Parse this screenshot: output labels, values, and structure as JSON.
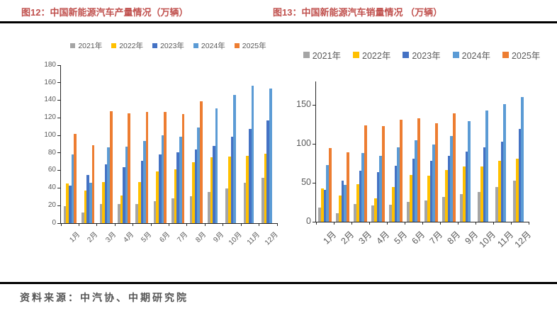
{
  "page": {
    "fig12_title": "图12：中国新能源汽车产量情况（万辆）",
    "fig13_title": "图13：中国新能源汽车销量情况 （万辆）",
    "source": "资料来源：中汽协、中期研究院"
  },
  "colors": {
    "title_red": "#c0504d",
    "axis_line": "#262626",
    "axis_text": "#595959",
    "rule_black": "#000000"
  },
  "chart_data": [
    {
      "type": "bar",
      "title": "图12：中国新能源汽车产量情况（万辆）",
      "categories": [
        "1月",
        "2月",
        "3月",
        "4月",
        "5月",
        "6月",
        "7月",
        "8月",
        "9月",
        "10月",
        "11月",
        "12月"
      ],
      "series": [
        {
          "name": "2021年",
          "color": "#A5A5A5",
          "values": [
            19.4,
            12.4,
            21.6,
            21.6,
            21.7,
            24.8,
            28.4,
            30.9,
            35.3,
            39.7,
            45.7,
            51.8
          ]
        },
        {
          "name": "2022年",
          "color": "#FFC000",
          "values": [
            45.2,
            36.8,
            46.5,
            31.2,
            46.6,
            59.0,
            61.7,
            69.1,
            75.5,
            76.2,
            76.8,
            79.5
          ]
        },
        {
          "name": "2023年",
          "color": "#4472C4",
          "values": [
            42.5,
            55.2,
            67.4,
            64.0,
            71.3,
            78.4,
            80.5,
            84.3,
            87.9,
            98.9,
            107.4,
            117.2
          ]
        },
        {
          "name": "2024年",
          "color": "#5B9BD5",
          "values": [
            78.7,
            46.4,
            86.3,
            87.0,
            94.0,
            100.3,
            98.4,
            109.2,
            130.7,
            146.3,
            156.6,
            153.0
          ]
        },
        {
          "name": "2025年",
          "color": "#ED7D31",
          "values": [
            101.5,
            88.8,
            127.7,
            125.4,
            127.0,
            126.8,
            124.3,
            139.1,
            null,
            null,
            null,
            null
          ]
        }
      ],
      "xlabel": "",
      "ylabel": "",
      "ylim": [
        0,
        180
      ],
      "yticks": [
        0,
        20,
        40,
        60,
        80,
        100,
        120,
        140,
        160,
        180
      ],
      "legend_position": "top",
      "grid": false
    },
    {
      "type": "bar",
      "title": "图13：中国新能源汽车销量情况 （万辆）",
      "categories": [
        "1月",
        "2月",
        "3月",
        "4月",
        "5月",
        "6月",
        "7月",
        "8月",
        "9月",
        "10月",
        "11月",
        "12月"
      ],
      "series": [
        {
          "name": "2021年",
          "color": "#A5A5A5",
          "values": [
            17.9,
            11.0,
            22.6,
            20.6,
            21.7,
            25.6,
            27.1,
            32.1,
            35.7,
            38.3,
            45.0,
            53.1
          ]
        },
        {
          "name": "2022年",
          "color": "#FFC000",
          "values": [
            43.1,
            33.4,
            48.4,
            29.9,
            44.7,
            59.6,
            59.3,
            66.6,
            70.8,
            71.4,
            78.6,
            81.4
          ]
        },
        {
          "name": "2023年",
          "color": "#4472C4",
          "values": [
            40.8,
            52.5,
            65.3,
            63.6,
            71.7,
            80.6,
            78.0,
            84.6,
            90.4,
            95.6,
            102.6,
            119.1
          ]
        },
        {
          "name": "2024年",
          "color": "#5B9BD5",
          "values": [
            72.9,
            47.7,
            88.3,
            85.0,
            95.5,
            104.9,
            99.1,
            110.0,
            128.7,
            143.0,
            151.2,
            159.6
          ]
        },
        {
          "name": "2025年",
          "color": "#ED7D31",
          "values": [
            94.4,
            89.2,
            123.7,
            122.6,
            130.7,
            132.9,
            126.2,
            139.5,
            null,
            null,
            null,
            null
          ]
        }
      ],
      "xlabel": "",
      "ylabel": "",
      "ylim": [
        0,
        180
      ],
      "yticks": [
        0,
        50,
        100,
        150
      ],
      "legend_position": "top",
      "grid": false
    }
  ]
}
